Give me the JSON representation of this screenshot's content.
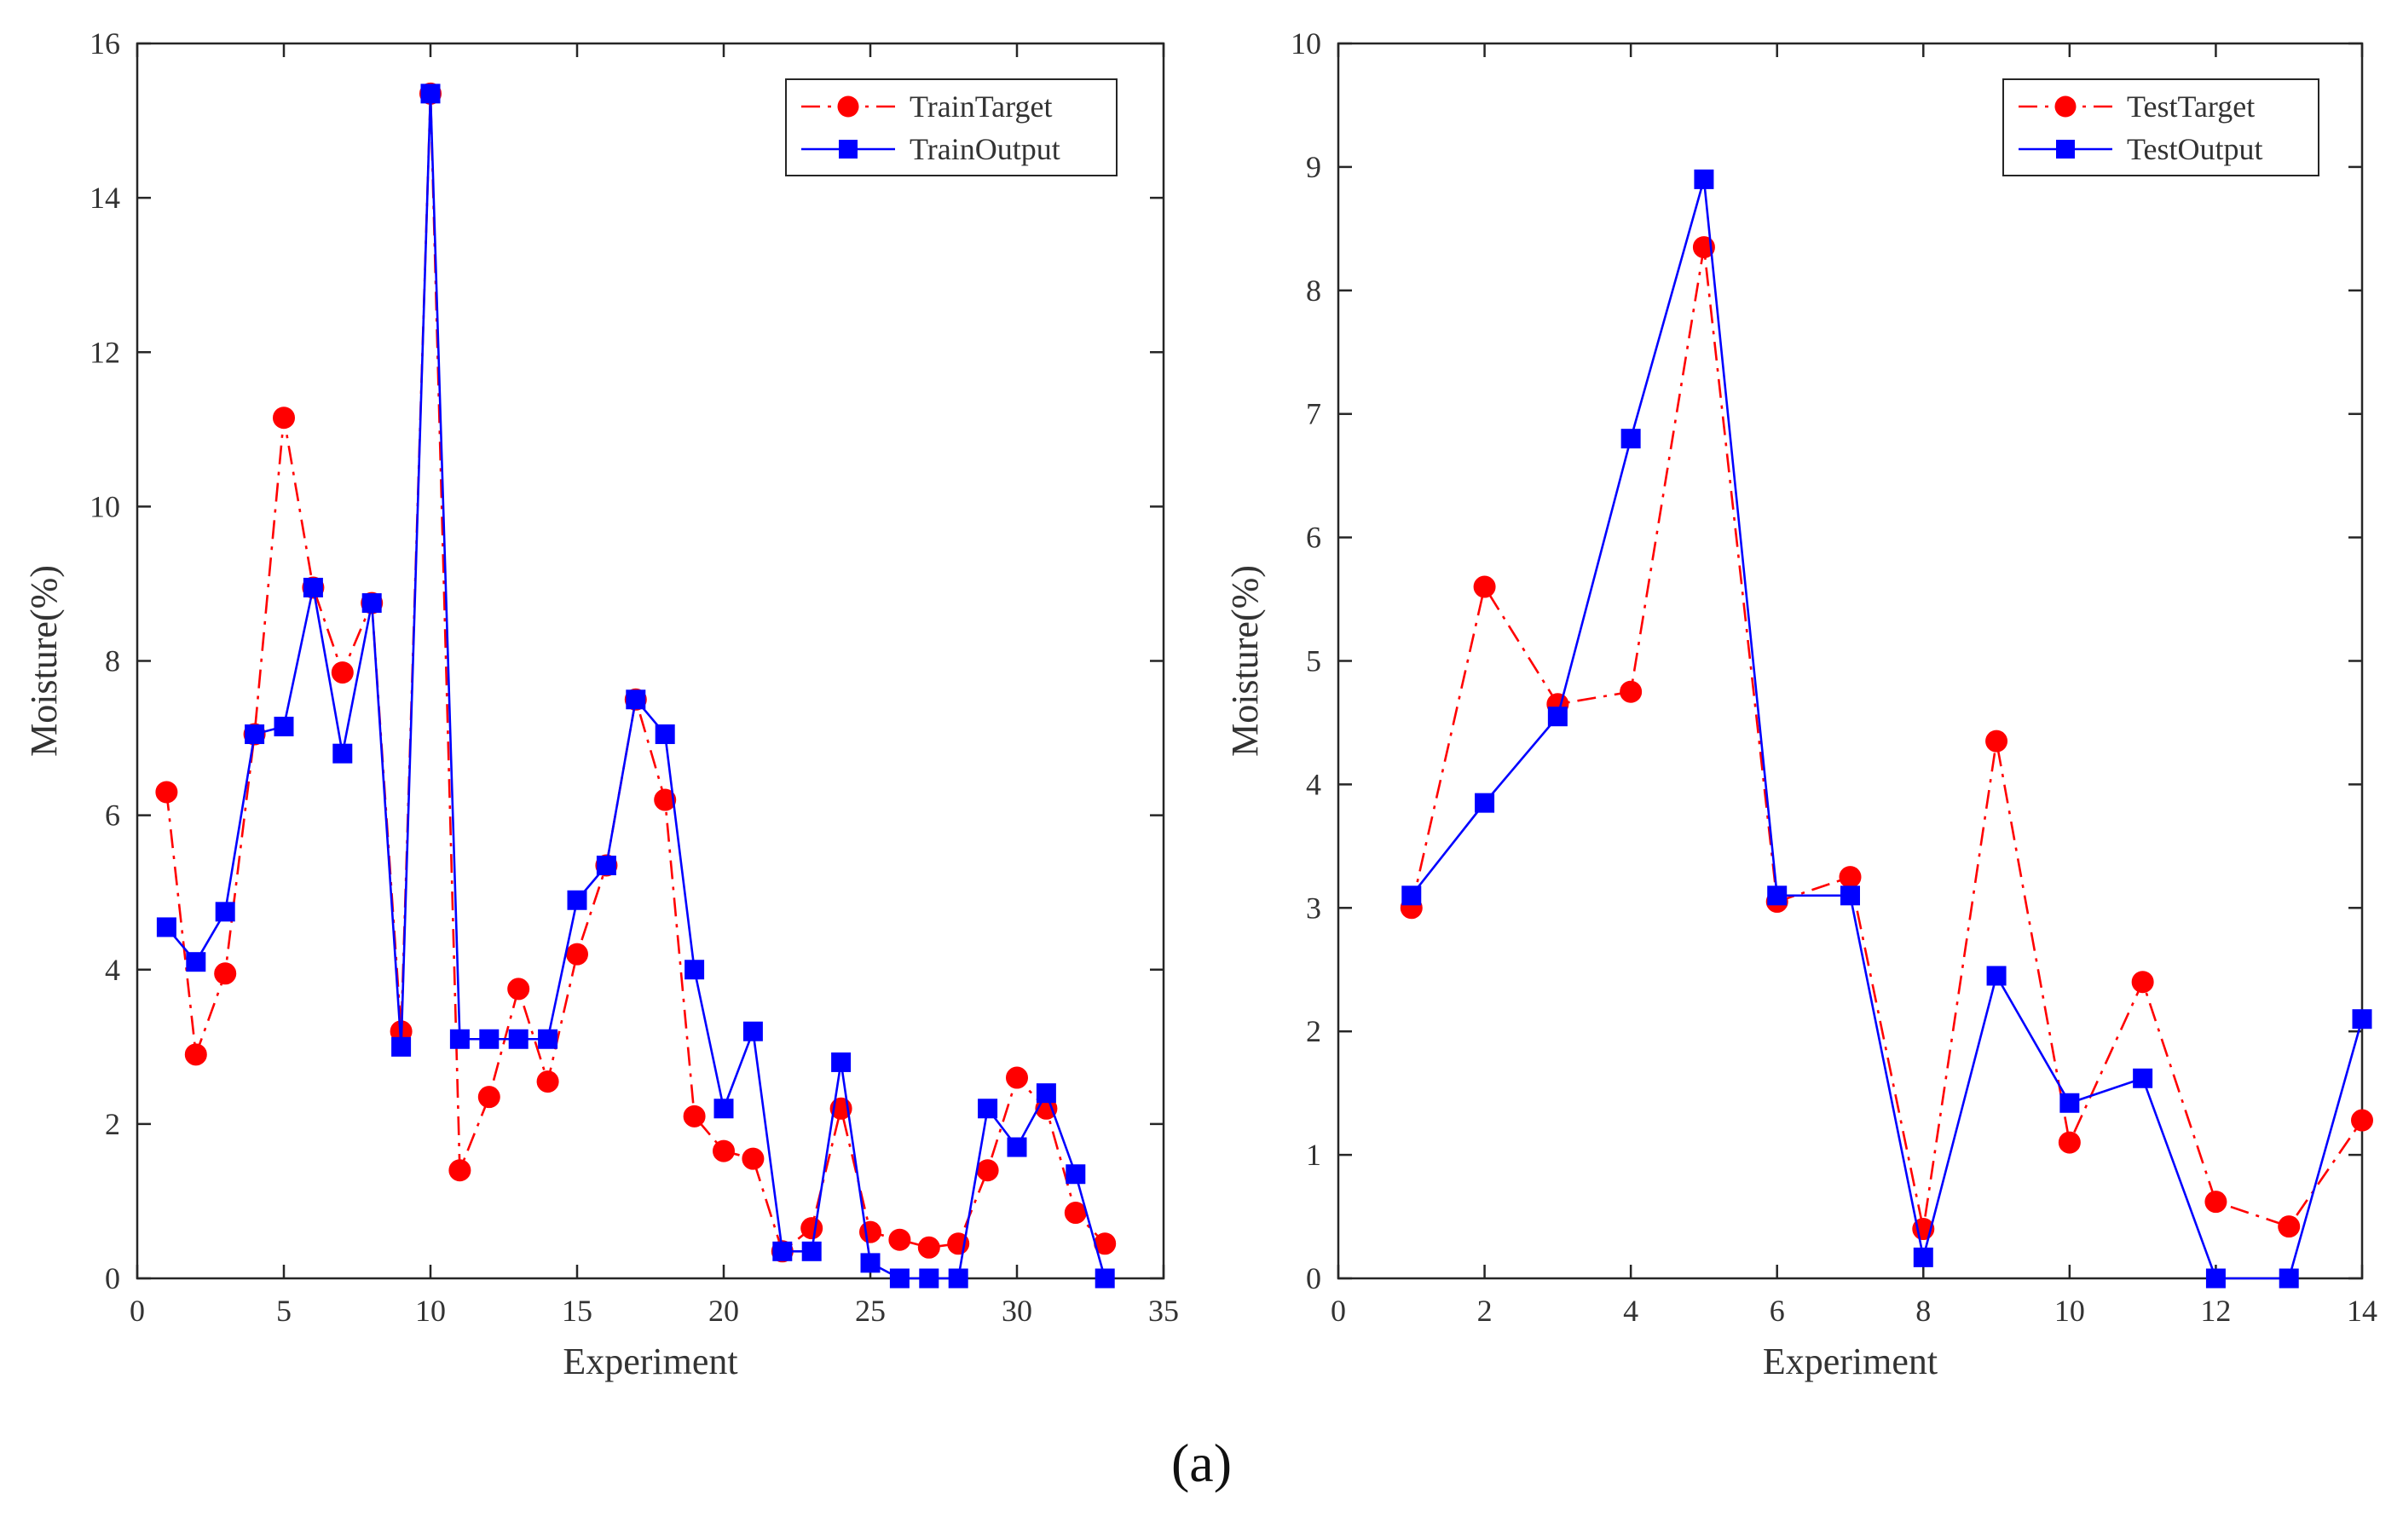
{
  "caption": "(a)",
  "chart_data": [
    {
      "type": "line",
      "xlabel": "Experiment",
      "ylabel": "Moisture(%)",
      "xlim": [
        0,
        35
      ],
      "ylim": [
        0,
        16
      ],
      "xticks": [
        "0",
        "5",
        "10",
        "15",
        "20",
        "25",
        "30",
        "35"
      ],
      "yticks": [
        "0",
        "2",
        "4",
        "6",
        "8",
        "10",
        "12",
        "14",
        "16"
      ],
      "legend_position": "top-right",
      "grid": false,
      "x": [
        1,
        2,
        3,
        4,
        5,
        6,
        7,
        8,
        9,
        10,
        11,
        12,
        13,
        14,
        15,
        16,
        17,
        18,
        19,
        20,
        21,
        22,
        23,
        24,
        25,
        26,
        27,
        28,
        29,
        30,
        31,
        32,
        33
      ],
      "series": [
        {
          "name": "TrainTarget",
          "color": "#ff0000",
          "style": "dash-dot",
          "marker": "circle",
          "values": [
            6.3,
            2.9,
            3.95,
            7.05,
            11.15,
            8.95,
            7.85,
            8.75,
            3.2,
            15.35,
            1.4,
            2.35,
            3.75,
            2.55,
            4.2,
            5.35,
            7.5,
            6.2,
            2.1,
            1.65,
            1.55,
            0.35,
            0.65,
            2.2,
            0.6,
            0.5,
            0.4,
            0.45,
            1.4,
            2.6,
            2.2,
            0.85,
            0.45
          ]
        },
        {
          "name": "TrainOutput",
          "color": "#0000ff",
          "style": "solid",
          "marker": "square",
          "values": [
            4.55,
            4.1,
            4.75,
            7.05,
            7.15,
            8.95,
            6.8,
            8.75,
            3.0,
            15.35,
            3.1,
            3.1,
            3.1,
            3.1,
            4.9,
            5.35,
            7.5,
            7.05,
            4.0,
            2.2,
            3.2,
            0.35,
            0.35,
            2.8,
            0.2,
            0.0,
            0.0,
            0.0,
            2.2,
            1.7,
            2.4,
            1.35,
            0.0
          ]
        }
      ]
    },
    {
      "type": "line",
      "xlabel": "Experiment",
      "ylabel": "Moisture(%)",
      "xlim": [
        0,
        14
      ],
      "ylim": [
        0,
        10
      ],
      "xticks": [
        "0",
        "2",
        "4",
        "6",
        "8",
        "10",
        "12",
        "14"
      ],
      "yticks": [
        "0",
        "1",
        "2",
        "3",
        "4",
        "5",
        "6",
        "7",
        "8",
        "9",
        "10"
      ],
      "legend_position": "top-right",
      "grid": false,
      "x": [
        1,
        2,
        3,
        4,
        5,
        6,
        7,
        8,
        9,
        10,
        11,
        12,
        13,
        14
      ],
      "series": [
        {
          "name": "TestTarget",
          "color": "#ff0000",
          "style": "dash-dot",
          "marker": "circle",
          "values": [
            3.0,
            5.6,
            4.65,
            4.75,
            8.35,
            3.05,
            3.25,
            0.4,
            4.35,
            1.1,
            2.4,
            0.62,
            0.42,
            1.28
          ]
        },
        {
          "name": "TestOutput",
          "color": "#0000ff",
          "style": "solid",
          "marker": "square",
          "values": [
            3.1,
            3.85,
            4.55,
            6.8,
            8.9,
            3.1,
            3.1,
            0.17,
            2.45,
            1.42,
            1.62,
            0.0,
            0.0,
            2.1
          ]
        }
      ]
    }
  ]
}
